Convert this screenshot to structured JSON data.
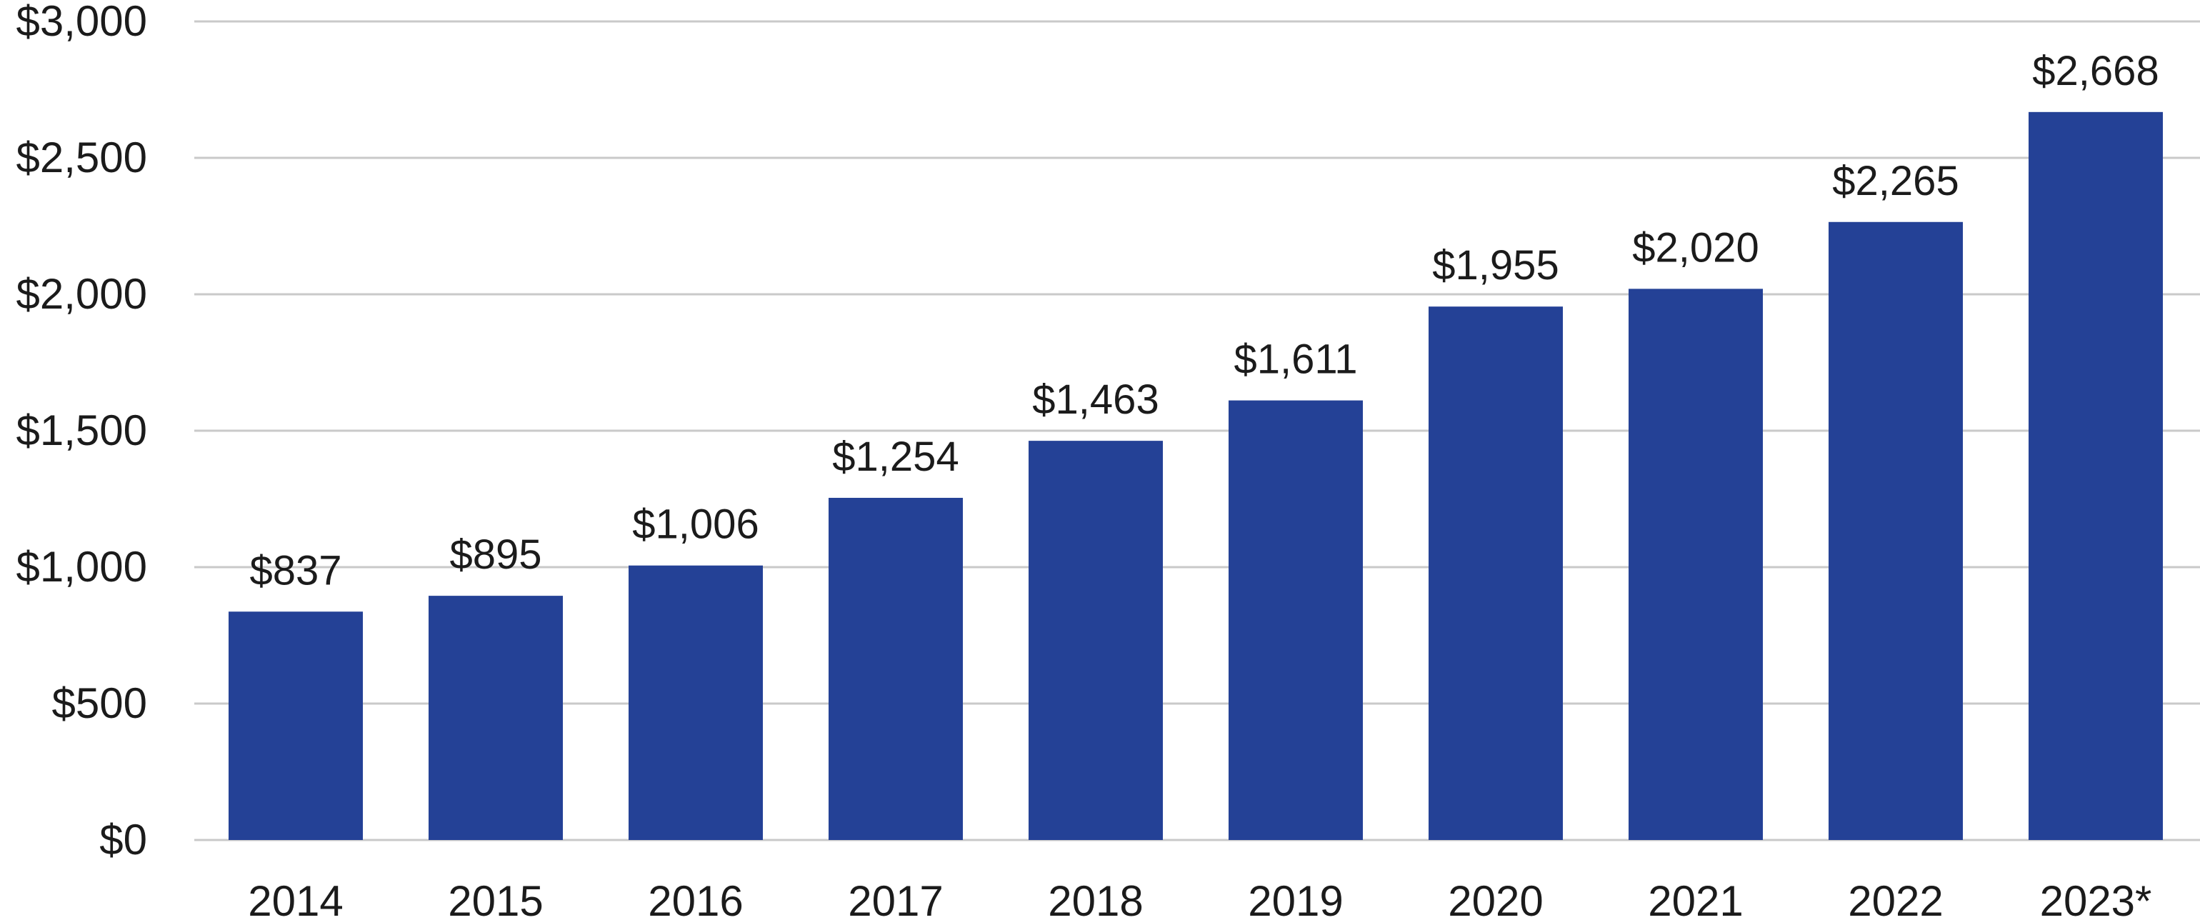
{
  "chart_data": {
    "type": "bar",
    "title": "",
    "xlabel": "",
    "ylabel": "",
    "categories": [
      "2014",
      "2015",
      "2016",
      "2017",
      "2018",
      "2019",
      "2020",
      "2021",
      "2022",
      "2023*"
    ],
    "values": [
      837,
      895,
      1006,
      1254,
      1463,
      1611,
      1955,
      2020,
      2265,
      2668
    ],
    "data_labels": [
      "$837",
      "$895",
      "$1,006",
      "$1,254",
      "$1,463",
      "$1,611",
      "$1,955",
      "$2,020",
      "$2,265",
      "$2,668"
    ],
    "ylim": [
      0,
      3000
    ],
    "yticks": [
      0,
      500,
      1000,
      1500,
      2000,
      2500,
      3000
    ],
    "ytick_labels": [
      "$0",
      "$500",
      "$1,000",
      "$1,500",
      "$2,000",
      "$2,500",
      "$3,000"
    ],
    "grid": true,
    "legend": "none",
    "bar_color": "#244196",
    "grid_color": "#c9c9c9",
    "text_color": "#1b1b1b"
  }
}
